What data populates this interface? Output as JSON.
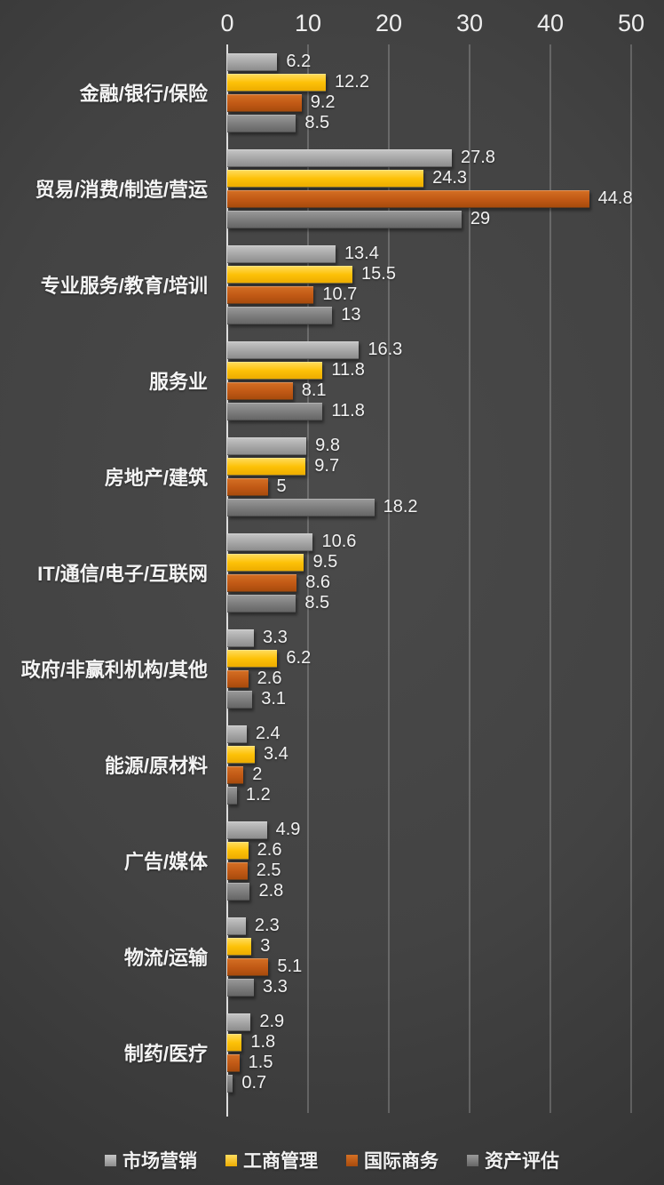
{
  "chart_data": {
    "type": "bar",
    "orientation": "horizontal",
    "title": "",
    "categories": [
      "金融/银行/保险",
      "贸易/消费/制造/营运",
      "专业服务/教育/培训",
      "服务业",
      "房地产/建筑",
      "IT/通信/电子/互联网",
      "政府/非赢利机构/其他",
      "能源/原材料",
      "广告/媒体",
      "物流/运输",
      "制药/医疗"
    ],
    "series": [
      {
        "name": "市场营销",
        "color": "#a8a8a8",
        "color_light": "#c6c6c6",
        "color_dark": "#8d8d8d",
        "values": [
          6.2,
          27.8,
          13.4,
          16.3,
          9.8,
          10.6,
          3.3,
          2.4,
          4.9,
          2.3,
          2.9
        ]
      },
      {
        "name": "工商管理",
        "color": "#fdc108",
        "color_light": "#ffdd60",
        "color_dark": "#edac00",
        "values": [
          12.2,
          24.3,
          15.5,
          11.8,
          9.7,
          9.5,
          6.2,
          3.4,
          2.6,
          3,
          1.8
        ]
      },
      {
        "name": "国际商务",
        "color": "#c25a16",
        "color_light": "#d57024",
        "color_dark": "#a84b0d",
        "values": [
          9.2,
          44.8,
          10.7,
          8.1,
          5,
          8.6,
          2.6,
          2,
          2.5,
          5.1,
          1.5
        ]
      },
      {
        "name": "资产评估",
        "color": "#7e7e7e",
        "color_light": "#9a9a9a",
        "color_dark": "#666666",
        "values": [
          8.5,
          29,
          13,
          11.8,
          18.2,
          8.5,
          3.1,
          1.2,
          2.8,
          3.3,
          0.7
        ]
      }
    ],
    "x_axis": {
      "position": "top",
      "min": 0,
      "max": 50,
      "ticks": [
        0,
        10,
        20,
        30,
        40,
        50
      ]
    },
    "grid": true,
    "value_labels": true,
    "legend": {
      "position": "bottom",
      "items": [
        "市场营销",
        "工商管理",
        "国际商务",
        "资产评估"
      ]
    },
    "background_color": "#3f3f3f",
    "text_color": "#f2f2f2"
  }
}
